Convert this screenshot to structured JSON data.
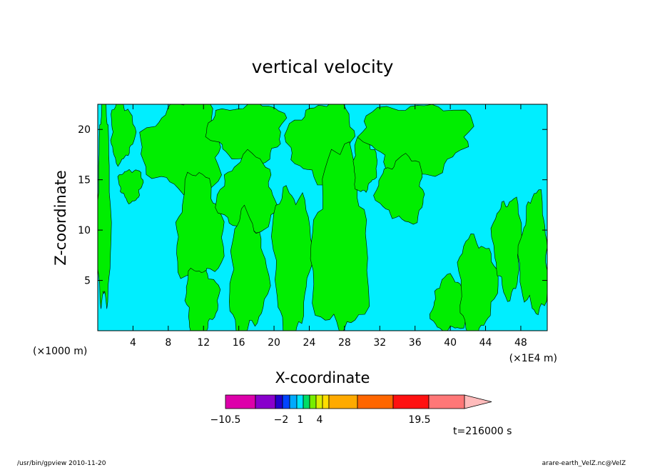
{
  "chart_data": {
    "type": "heatmap",
    "title": "vertical velocity",
    "xlabel": "X-coordinate",
    "ylabel": "Z-coordinate",
    "x_unit_label": "(×1000 m)",
    "x_scale_label": "(×1E4 m)",
    "x_ticks": [
      "4",
      "8",
      "12",
      "16",
      "20",
      "24",
      "28",
      "32",
      "36",
      "40",
      "44",
      "48"
    ],
    "y_ticks": [
      "5",
      "10",
      "15",
      "20"
    ],
    "xlim": [
      0,
      51
    ],
    "ylim": [
      0,
      22.5
    ],
    "grid": false,
    "colorbar": {
      "labels": [
        "-10.5",
        "-2",
        "1",
        "4",
        "19.5"
      ],
      "colors": [
        "#dd00aa",
        "#8800cc",
        "#2200cc",
        "#0044ff",
        "#00aaff",
        "#00e5ff",
        "#00dd66",
        "#77ee00",
        "#ddee00",
        "#ffdd00",
        "#ffaa00",
        "#ff6600",
        "#ff1111",
        "#ff7777",
        "#ffbbbb"
      ]
    },
    "field_colors": {
      "negative": "#00eeff",
      "positive": "#00ee00"
    },
    "positive_regions": [
      {
        "x": [
          0,
          1.4
        ],
        "z": [
          2.5,
          22.5
        ]
      },
      {
        "x": [
          1.5,
          4
        ],
        "z": [
          17,
          22.5
        ]
      },
      {
        "x": [
          2.5,
          5
        ],
        "z": [
          13,
          16
        ]
      },
      {
        "x": [
          5.5,
          14
        ],
        "z": [
          14,
          22.5
        ]
      },
      {
        "x": [
          9,
          14
        ],
        "z": [
          5,
          15
        ]
      },
      {
        "x": [
          10,
          13.5
        ],
        "z": [
          0,
          6
        ]
      },
      {
        "x": [
          13,
          21
        ],
        "z": [
          17,
          22.5
        ]
      },
      {
        "x": [
          14,
          20
        ],
        "z": [
          10,
          17
        ]
      },
      {
        "x": [
          15,
          19
        ],
        "z": [
          0,
          11
        ]
      },
      {
        "x": [
          20,
          24
        ],
        "z": [
          0,
          14
        ]
      },
      {
        "x": [
          22,
          29
        ],
        "z": [
          15,
          22.5
        ]
      },
      {
        "x": [
          24.5,
          30.5
        ],
        "z": [
          0,
          17
        ]
      },
      {
        "x": [
          29,
          31.5
        ],
        "z": [
          14,
          19
        ]
      },
      {
        "x": [
          30.5,
          42
        ],
        "z": [
          16,
          22.5
        ]
      },
      {
        "x": [
          32,
          37
        ],
        "z": [
          11,
          17
        ]
      },
      {
        "x": [
          38,
          42
        ],
        "z": [
          0,
          5
        ]
      },
      {
        "x": [
          41,
          45
        ],
        "z": [
          0,
          9
        ]
      },
      {
        "x": [
          45,
          48
        ],
        "z": [
          4,
          13
        ]
      },
      {
        "x": [
          48,
          51
        ],
        "z": [
          2,
          13
        ]
      }
    ],
    "time_label": "t=216000 s"
  },
  "footer": {
    "left": "/usr/bin/gpview   2010-11-20",
    "right": "arare-earth_VelZ.nc@VelZ"
  }
}
